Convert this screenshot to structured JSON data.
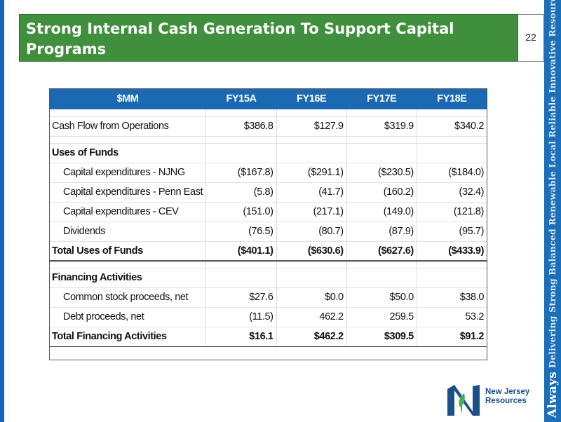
{
  "slide": {
    "title": "Strong Internal Cash Generation To Support Capital Programs",
    "page_number": "22"
  },
  "tagline": {
    "lead": "Always",
    "rest": "Delivering Strong Balanced Renewable Local Reliable Innovative Resourceful Energy"
  },
  "logo": {
    "line1": "New Jersey",
    "line2": "Resources",
    "colors": {
      "blue": "#1b4f8a",
      "green": "#4caf50"
    }
  },
  "table": {
    "headers": [
      "$MM",
      "FY15A",
      "FY16E",
      "FY17E",
      "FY18E"
    ],
    "cash_flow_ops": {
      "label": "Cash Flow from Operations",
      "values": [
        "$386.8",
        "$127.9",
        "$319.9",
        "$340.2"
      ]
    },
    "uses_section_label": "Uses of Funds",
    "uses": [
      {
        "label": "Capital expenditures - NJNG",
        "values": [
          "($167.8)",
          "($291.1)",
          "($230.5)",
          "($184.0)"
        ]
      },
      {
        "label": "Capital expenditures - Penn East",
        "values": [
          "(5.8)",
          "(41.7)",
          "(160.2)",
          "(32.4)"
        ]
      },
      {
        "label": "Capital expenditures - CEV",
        "values": [
          "(151.0)",
          "(217.1)",
          "(149.0)",
          "(121.8)"
        ]
      },
      {
        "label": "Dividends",
        "values": [
          "(76.5)",
          "(80.7)",
          "(87.9)",
          "(95.7)"
        ]
      }
    ],
    "total_uses": {
      "label": "Total Uses of Funds",
      "values": [
        "($401.1)",
        "($630.6)",
        "($627.6)",
        "($433.9)"
      ]
    },
    "financing_section_label": "Financing Activities",
    "financing": [
      {
        "label": "Common stock proceeds, net",
        "values": [
          "$27.6",
          "$0.0",
          "$50.0",
          "$38.0"
        ]
      },
      {
        "label": "Debt proceeds, net",
        "values": [
          "(11.5)",
          "462.2",
          "259.5",
          "53.2"
        ]
      }
    ],
    "total_financing": {
      "label": "Total Financing Activities",
      "values": [
        "$16.1",
        "$462.2",
        "$309.5",
        "$91.2"
      ]
    }
  },
  "colors": {
    "title_green": "#3f8f3c",
    "header_blue": "#1c69b3",
    "side_blue": "#1b6fb8"
  }
}
